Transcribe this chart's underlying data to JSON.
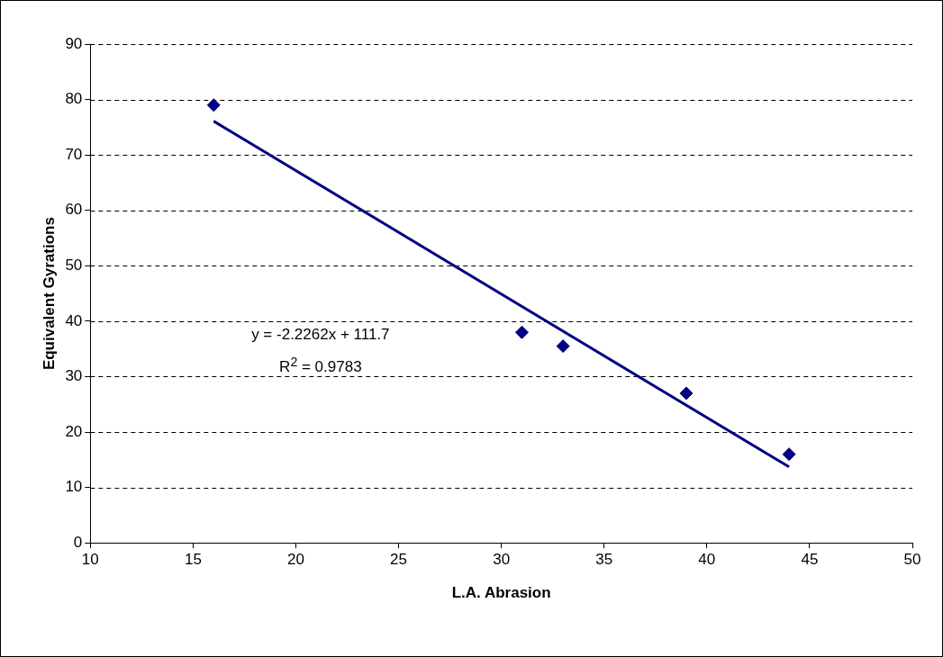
{
  "chart_data": {
    "type": "scatter",
    "xlabel": "L.A. Abrasion",
    "ylabel": "Equivalent Gyrations",
    "marker": "diamond",
    "grid": "y",
    "x": [
      16,
      31,
      33,
      39,
      44
    ],
    "series": [
      {
        "color": "#000080",
        "values": [
          79,
          38,
          35.5,
          27,
          16
        ]
      },
      {
        "type": "line",
        "color": "#000080",
        "x": [
          16,
          44
        ],
        "values": [
          76.1,
          13.7
        ],
        "marker": "none"
      }
    ],
    "xlim": [
      10,
      50
    ],
    "xticks": [
      10,
      15,
      20,
      25,
      30,
      35,
      40,
      45,
      50
    ],
    "ylim": [
      0,
      90
    ],
    "yticks": [
      0,
      10,
      20,
      30,
      40,
      50,
      60,
      70,
      80,
      90
    ],
    "annotations": [
      "y = -2.2262x + 111.7",
      "R$^{2}$ = 0.9783"
    ]
  }
}
